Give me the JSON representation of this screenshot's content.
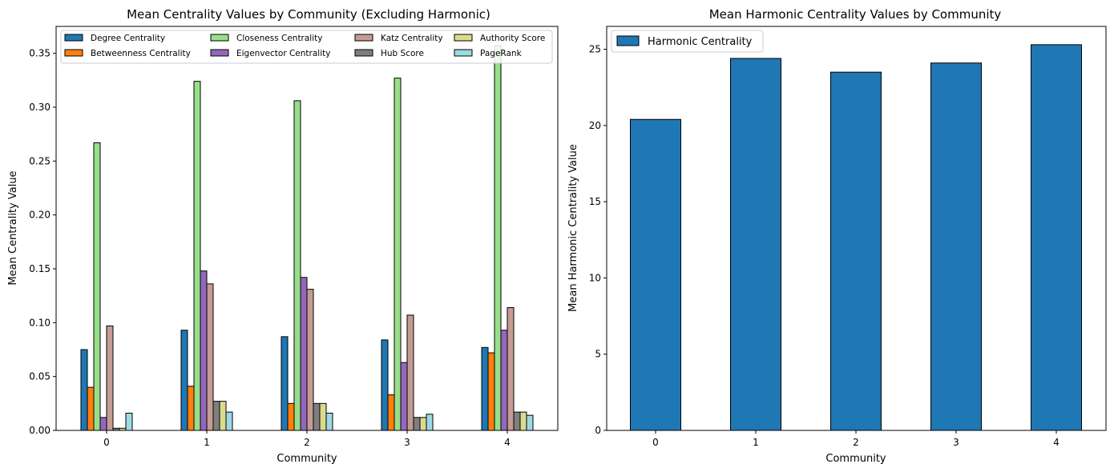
{
  "chart_data": [
    {
      "type": "bar",
      "title": "Mean Centrality Values by Community (Excluding Harmonic)",
      "xlabel": "Community",
      "ylabel": "Mean Centrality Value",
      "categories": [
        "0",
        "1",
        "2",
        "3",
        "4"
      ],
      "ylim": [
        0,
        0.375
      ],
      "yticks": [
        "0.00",
        "0.05",
        "0.10",
        "0.15",
        "0.20",
        "0.25",
        "0.30",
        "0.35"
      ],
      "legend_position": "top",
      "series": [
        {
          "name": "Degree Centrality",
          "color": "#1f77b4",
          "values": [
            0.075,
            0.093,
            0.087,
            0.084,
            0.077
          ]
        },
        {
          "name": "Betweenness Centrality",
          "color": "#ff7f0e",
          "values": [
            0.04,
            0.041,
            0.025,
            0.033,
            0.072
          ]
        },
        {
          "name": "Closeness Centrality",
          "color": "#98df8a",
          "values": [
            0.267,
            0.324,
            0.306,
            0.327,
            0.357
          ]
        },
        {
          "name": "Eigenvector Centrality",
          "color": "#9467bd",
          "values": [
            0.012,
            0.148,
            0.142,
            0.063,
            0.093
          ]
        },
        {
          "name": "Katz Centrality",
          "color": "#c49c94",
          "values": [
            0.097,
            0.136,
            0.131,
            0.107,
            0.114
          ]
        },
        {
          "name": "Hub Score",
          "color": "#7f7f7f",
          "values": [
            0.002,
            0.027,
            0.025,
            0.012,
            0.017
          ]
        },
        {
          "name": "Authority Score",
          "color": "#dbdb8d",
          "values": [
            0.002,
            0.027,
            0.025,
            0.012,
            0.017
          ]
        },
        {
          "name": "PageRank",
          "color": "#9edae5",
          "values": [
            0.016,
            0.017,
            0.016,
            0.015,
            0.014
          ]
        }
      ]
    },
    {
      "type": "bar",
      "title": "Mean Harmonic Centrality Values by Community",
      "xlabel": "Community",
      "ylabel": "Mean Harmonic Centrality Value",
      "categories": [
        "0",
        "1",
        "2",
        "3",
        "4"
      ],
      "ylim": [
        0,
        26.5
      ],
      "yticks": [
        "0",
        "5",
        "10",
        "15",
        "20",
        "25"
      ],
      "legend_position": "top-left",
      "series": [
        {
          "name": "Harmonic Centrality",
          "color": "#1f77b4",
          "values": [
            20.4,
            24.4,
            23.5,
            24.1,
            25.3
          ]
        }
      ]
    }
  ]
}
